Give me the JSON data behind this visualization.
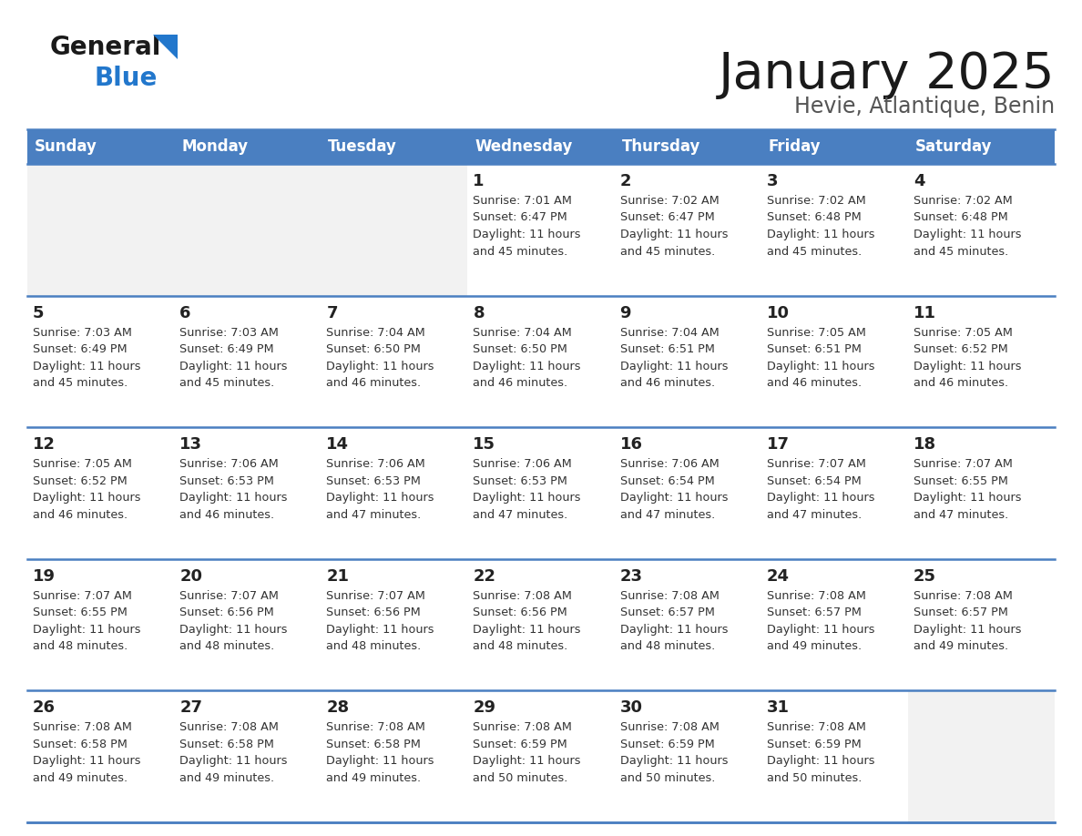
{
  "title": "January 2025",
  "subtitle": "Hevie, Atlantique, Benin",
  "header_color": "#4a7fc1",
  "header_text_color": "#FFFFFF",
  "cell_bg_empty": "#F2F2F2",
  "cell_bg_normal": "#FFFFFF",
  "border_color": "#4a7fc1",
  "text_color": "#333333",
  "day_num_color": "#222222",
  "logo_black": "#1a1a1a",
  "logo_blue": "#2277CC",
  "days_of_week": [
    "Sunday",
    "Monday",
    "Tuesday",
    "Wednesday",
    "Thursday",
    "Friday",
    "Saturday"
  ],
  "weeks": [
    [
      {
        "day": "",
        "sunrise": "",
        "sunset": "",
        "daylight": ""
      },
      {
        "day": "",
        "sunrise": "",
        "sunset": "",
        "daylight": ""
      },
      {
        "day": "",
        "sunrise": "",
        "sunset": "",
        "daylight": ""
      },
      {
        "day": "1",
        "sunrise": "7:01 AM",
        "sunset": "6:47 PM",
        "daylight": "11 hours and 45 minutes."
      },
      {
        "day": "2",
        "sunrise": "7:02 AM",
        "sunset": "6:47 PM",
        "daylight": "11 hours and 45 minutes."
      },
      {
        "day": "3",
        "sunrise": "7:02 AM",
        "sunset": "6:48 PM",
        "daylight": "11 hours and 45 minutes."
      },
      {
        "day": "4",
        "sunrise": "7:02 AM",
        "sunset": "6:48 PM",
        "daylight": "11 hours and 45 minutes."
      }
    ],
    [
      {
        "day": "5",
        "sunrise": "7:03 AM",
        "sunset": "6:49 PM",
        "daylight": "11 hours and 45 minutes."
      },
      {
        "day": "6",
        "sunrise": "7:03 AM",
        "sunset": "6:49 PM",
        "daylight": "11 hours and 45 minutes."
      },
      {
        "day": "7",
        "sunrise": "7:04 AM",
        "sunset": "6:50 PM",
        "daylight": "11 hours and 46 minutes."
      },
      {
        "day": "8",
        "sunrise": "7:04 AM",
        "sunset": "6:50 PM",
        "daylight": "11 hours and 46 minutes."
      },
      {
        "day": "9",
        "sunrise": "7:04 AM",
        "sunset": "6:51 PM",
        "daylight": "11 hours and 46 minutes."
      },
      {
        "day": "10",
        "sunrise": "7:05 AM",
        "sunset": "6:51 PM",
        "daylight": "11 hours and 46 minutes."
      },
      {
        "day": "11",
        "sunrise": "7:05 AM",
        "sunset": "6:52 PM",
        "daylight": "11 hours and 46 minutes."
      }
    ],
    [
      {
        "day": "12",
        "sunrise": "7:05 AM",
        "sunset": "6:52 PM",
        "daylight": "11 hours and 46 minutes."
      },
      {
        "day": "13",
        "sunrise": "7:06 AM",
        "sunset": "6:53 PM",
        "daylight": "11 hours and 46 minutes."
      },
      {
        "day": "14",
        "sunrise": "7:06 AM",
        "sunset": "6:53 PM",
        "daylight": "11 hours and 47 minutes."
      },
      {
        "day": "15",
        "sunrise": "7:06 AM",
        "sunset": "6:53 PM",
        "daylight": "11 hours and 47 minutes."
      },
      {
        "day": "16",
        "sunrise": "7:06 AM",
        "sunset": "6:54 PM",
        "daylight": "11 hours and 47 minutes."
      },
      {
        "day": "17",
        "sunrise": "7:07 AM",
        "sunset": "6:54 PM",
        "daylight": "11 hours and 47 minutes."
      },
      {
        "day": "18",
        "sunrise": "7:07 AM",
        "sunset": "6:55 PM",
        "daylight": "11 hours and 47 minutes."
      }
    ],
    [
      {
        "day": "19",
        "sunrise": "7:07 AM",
        "sunset": "6:55 PM",
        "daylight": "11 hours and 48 minutes."
      },
      {
        "day": "20",
        "sunrise": "7:07 AM",
        "sunset": "6:56 PM",
        "daylight": "11 hours and 48 minutes."
      },
      {
        "day": "21",
        "sunrise": "7:07 AM",
        "sunset": "6:56 PM",
        "daylight": "11 hours and 48 minutes."
      },
      {
        "day": "22",
        "sunrise": "7:08 AM",
        "sunset": "6:56 PM",
        "daylight": "11 hours and 48 minutes."
      },
      {
        "day": "23",
        "sunrise": "7:08 AM",
        "sunset": "6:57 PM",
        "daylight": "11 hours and 48 minutes."
      },
      {
        "day": "24",
        "sunrise": "7:08 AM",
        "sunset": "6:57 PM",
        "daylight": "11 hours and 49 minutes."
      },
      {
        "day": "25",
        "sunrise": "7:08 AM",
        "sunset": "6:57 PM",
        "daylight": "11 hours and 49 minutes."
      }
    ],
    [
      {
        "day": "26",
        "sunrise": "7:08 AM",
        "sunset": "6:58 PM",
        "daylight": "11 hours and 49 minutes."
      },
      {
        "day": "27",
        "sunrise": "7:08 AM",
        "sunset": "6:58 PM",
        "daylight": "11 hours and 49 minutes."
      },
      {
        "day": "28",
        "sunrise": "7:08 AM",
        "sunset": "6:58 PM",
        "daylight": "11 hours and 49 minutes."
      },
      {
        "day": "29",
        "sunrise": "7:08 AM",
        "sunset": "6:59 PM",
        "daylight": "11 hours and 50 minutes."
      },
      {
        "day": "30",
        "sunrise": "7:08 AM",
        "sunset": "6:59 PM",
        "daylight": "11 hours and 50 minutes."
      },
      {
        "day": "31",
        "sunrise": "7:08 AM",
        "sunset": "6:59 PM",
        "daylight": "11 hours and 50 minutes."
      },
      {
        "day": "",
        "sunrise": "",
        "sunset": "",
        "daylight": ""
      }
    ]
  ]
}
